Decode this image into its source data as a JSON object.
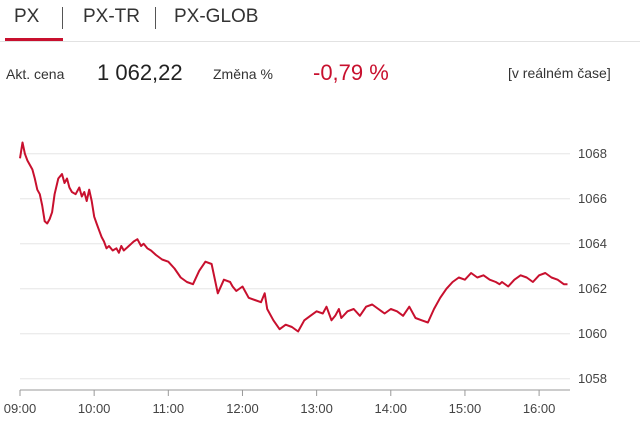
{
  "tabs": [
    {
      "label": "PX",
      "active": true
    },
    {
      "label": "PX-TR",
      "active": false
    },
    {
      "label": "PX-GLOB",
      "active": false
    }
  ],
  "info": {
    "price_label": "Akt. cena",
    "price_value": "1 062,22",
    "change_label": "Změna %",
    "change_value": "-0,79 %",
    "realtime_label": "[v reálném čase]"
  },
  "colors": {
    "accent": "#c8102e",
    "grid": "#e6e6e6",
    "axis": "#999999"
  },
  "chart_data": {
    "type": "line",
    "title": "",
    "xlabel": "",
    "ylabel": "",
    "ylim": [
      1057.5,
      1069.5
    ],
    "yticks": [
      1068,
      1066,
      1064,
      1062,
      1060,
      1058
    ],
    "xlim": [
      "09:00",
      "16:25"
    ],
    "xticks": [
      "09:00",
      "10:00",
      "11:00",
      "12:00",
      "13:00",
      "14:00",
      "15:00",
      "16:00"
    ],
    "grid": "horizontal",
    "series": [
      {
        "name": "",
        "x": [
          "09:00",
          "09:02",
          "09:04",
          "09:06",
          "09:08",
          "09:10",
          "09:12",
          "09:14",
          "09:16",
          "09:18",
          "09:20",
          "09:22",
          "09:24",
          "09:26",
          "09:28",
          "09:31",
          "09:34",
          "09:36",
          "09:38",
          "09:40",
          "09:42",
          "09:45",
          "09:48",
          "09:50",
          "09:52",
          "09:54",
          "09:56",
          "09:58",
          "10:00",
          "10:02",
          "10:04",
          "10:06",
          "10:08",
          "10:10",
          "10:12",
          "10:15",
          "10:18",
          "10:20",
          "10:22",
          "10:24",
          "10:26",
          "10:28",
          "10:30",
          "10:32",
          "10:35",
          "10:38",
          "10:40",
          "10:43",
          "10:46",
          "10:50",
          "10:55",
          "11:00",
          "11:05",
          "11:10",
          "11:15",
          "11:20",
          "11:25",
          "11:30",
          "11:35",
          "11:40",
          "11:45",
          "11:50",
          "11:52",
          "11:55",
          "12:00",
          "12:05",
          "12:10",
          "12:15",
          "12:18",
          "12:20",
          "12:25",
          "12:30",
          "12:35",
          "12:40",
          "12:45",
          "12:50",
          "12:55",
          "13:00",
          "13:05",
          "13:08",
          "13:10",
          "13:12",
          "13:15",
          "13:18",
          "13:20",
          "13:25",
          "13:30",
          "13:35",
          "13:40",
          "13:45",
          "13:50",
          "13:55",
          "14:00",
          "14:05",
          "14:10",
          "14:15",
          "14:20",
          "14:25",
          "14:30",
          "14:35",
          "14:40",
          "14:45",
          "14:50",
          "14:55",
          "15:00",
          "15:05",
          "15:10",
          "15:15",
          "15:20",
          "15:25",
          "15:28",
          "15:30",
          "15:35",
          "15:40",
          "15:45",
          "15:50",
          "15:55",
          "16:00",
          "16:05",
          "16:10",
          "16:15",
          "16:20",
          "16:23"
        ],
        "values": [
          1067.8,
          1068.5,
          1068.0,
          1067.7,
          1067.5,
          1067.3,
          1066.9,
          1066.4,
          1066.2,
          1065.7,
          1065.0,
          1064.9,
          1065.1,
          1065.4,
          1066.2,
          1066.9,
          1067.1,
          1066.7,
          1066.9,
          1066.5,
          1066.3,
          1066.2,
          1066.5,
          1066.1,
          1066.3,
          1065.9,
          1066.4,
          1065.9,
          1065.2,
          1064.9,
          1064.6,
          1064.3,
          1064.1,
          1063.8,
          1063.9,
          1063.7,
          1063.8,
          1063.6,
          1063.9,
          1063.7,
          1063.8,
          1063.9,
          1064.0,
          1064.1,
          1064.2,
          1063.9,
          1064.0,
          1063.8,
          1063.7,
          1063.5,
          1063.3,
          1063.2,
          1062.9,
          1062.5,
          1062.3,
          1062.2,
          1062.8,
          1063.2,
          1063.1,
          1061.8,
          1062.4,
          1062.3,
          1062.1,
          1061.9,
          1062.1,
          1061.6,
          1061.5,
          1061.4,
          1061.8,
          1061.1,
          1060.6,
          1060.2,
          1060.4,
          1060.3,
          1060.1,
          1060.6,
          1060.8,
          1061.0,
          1060.9,
          1061.2,
          1060.9,
          1060.6,
          1060.8,
          1061.1,
          1060.7,
          1061.0,
          1061.1,
          1060.8,
          1061.2,
          1061.3,
          1061.1,
          1060.9,
          1061.1,
          1061.0,
          1060.8,
          1061.2,
          1060.7,
          1060.6,
          1060.5,
          1061.1,
          1061.6,
          1062.0,
          1062.3,
          1062.5,
          1062.4,
          1062.7,
          1062.5,
          1062.6,
          1062.4,
          1062.3,
          1062.2,
          1062.3,
          1062.1,
          1062.4,
          1062.6,
          1062.5,
          1062.3,
          1062.6,
          1062.7,
          1062.5,
          1062.4,
          1062.2,
          1062.2
        ]
      }
    ]
  }
}
